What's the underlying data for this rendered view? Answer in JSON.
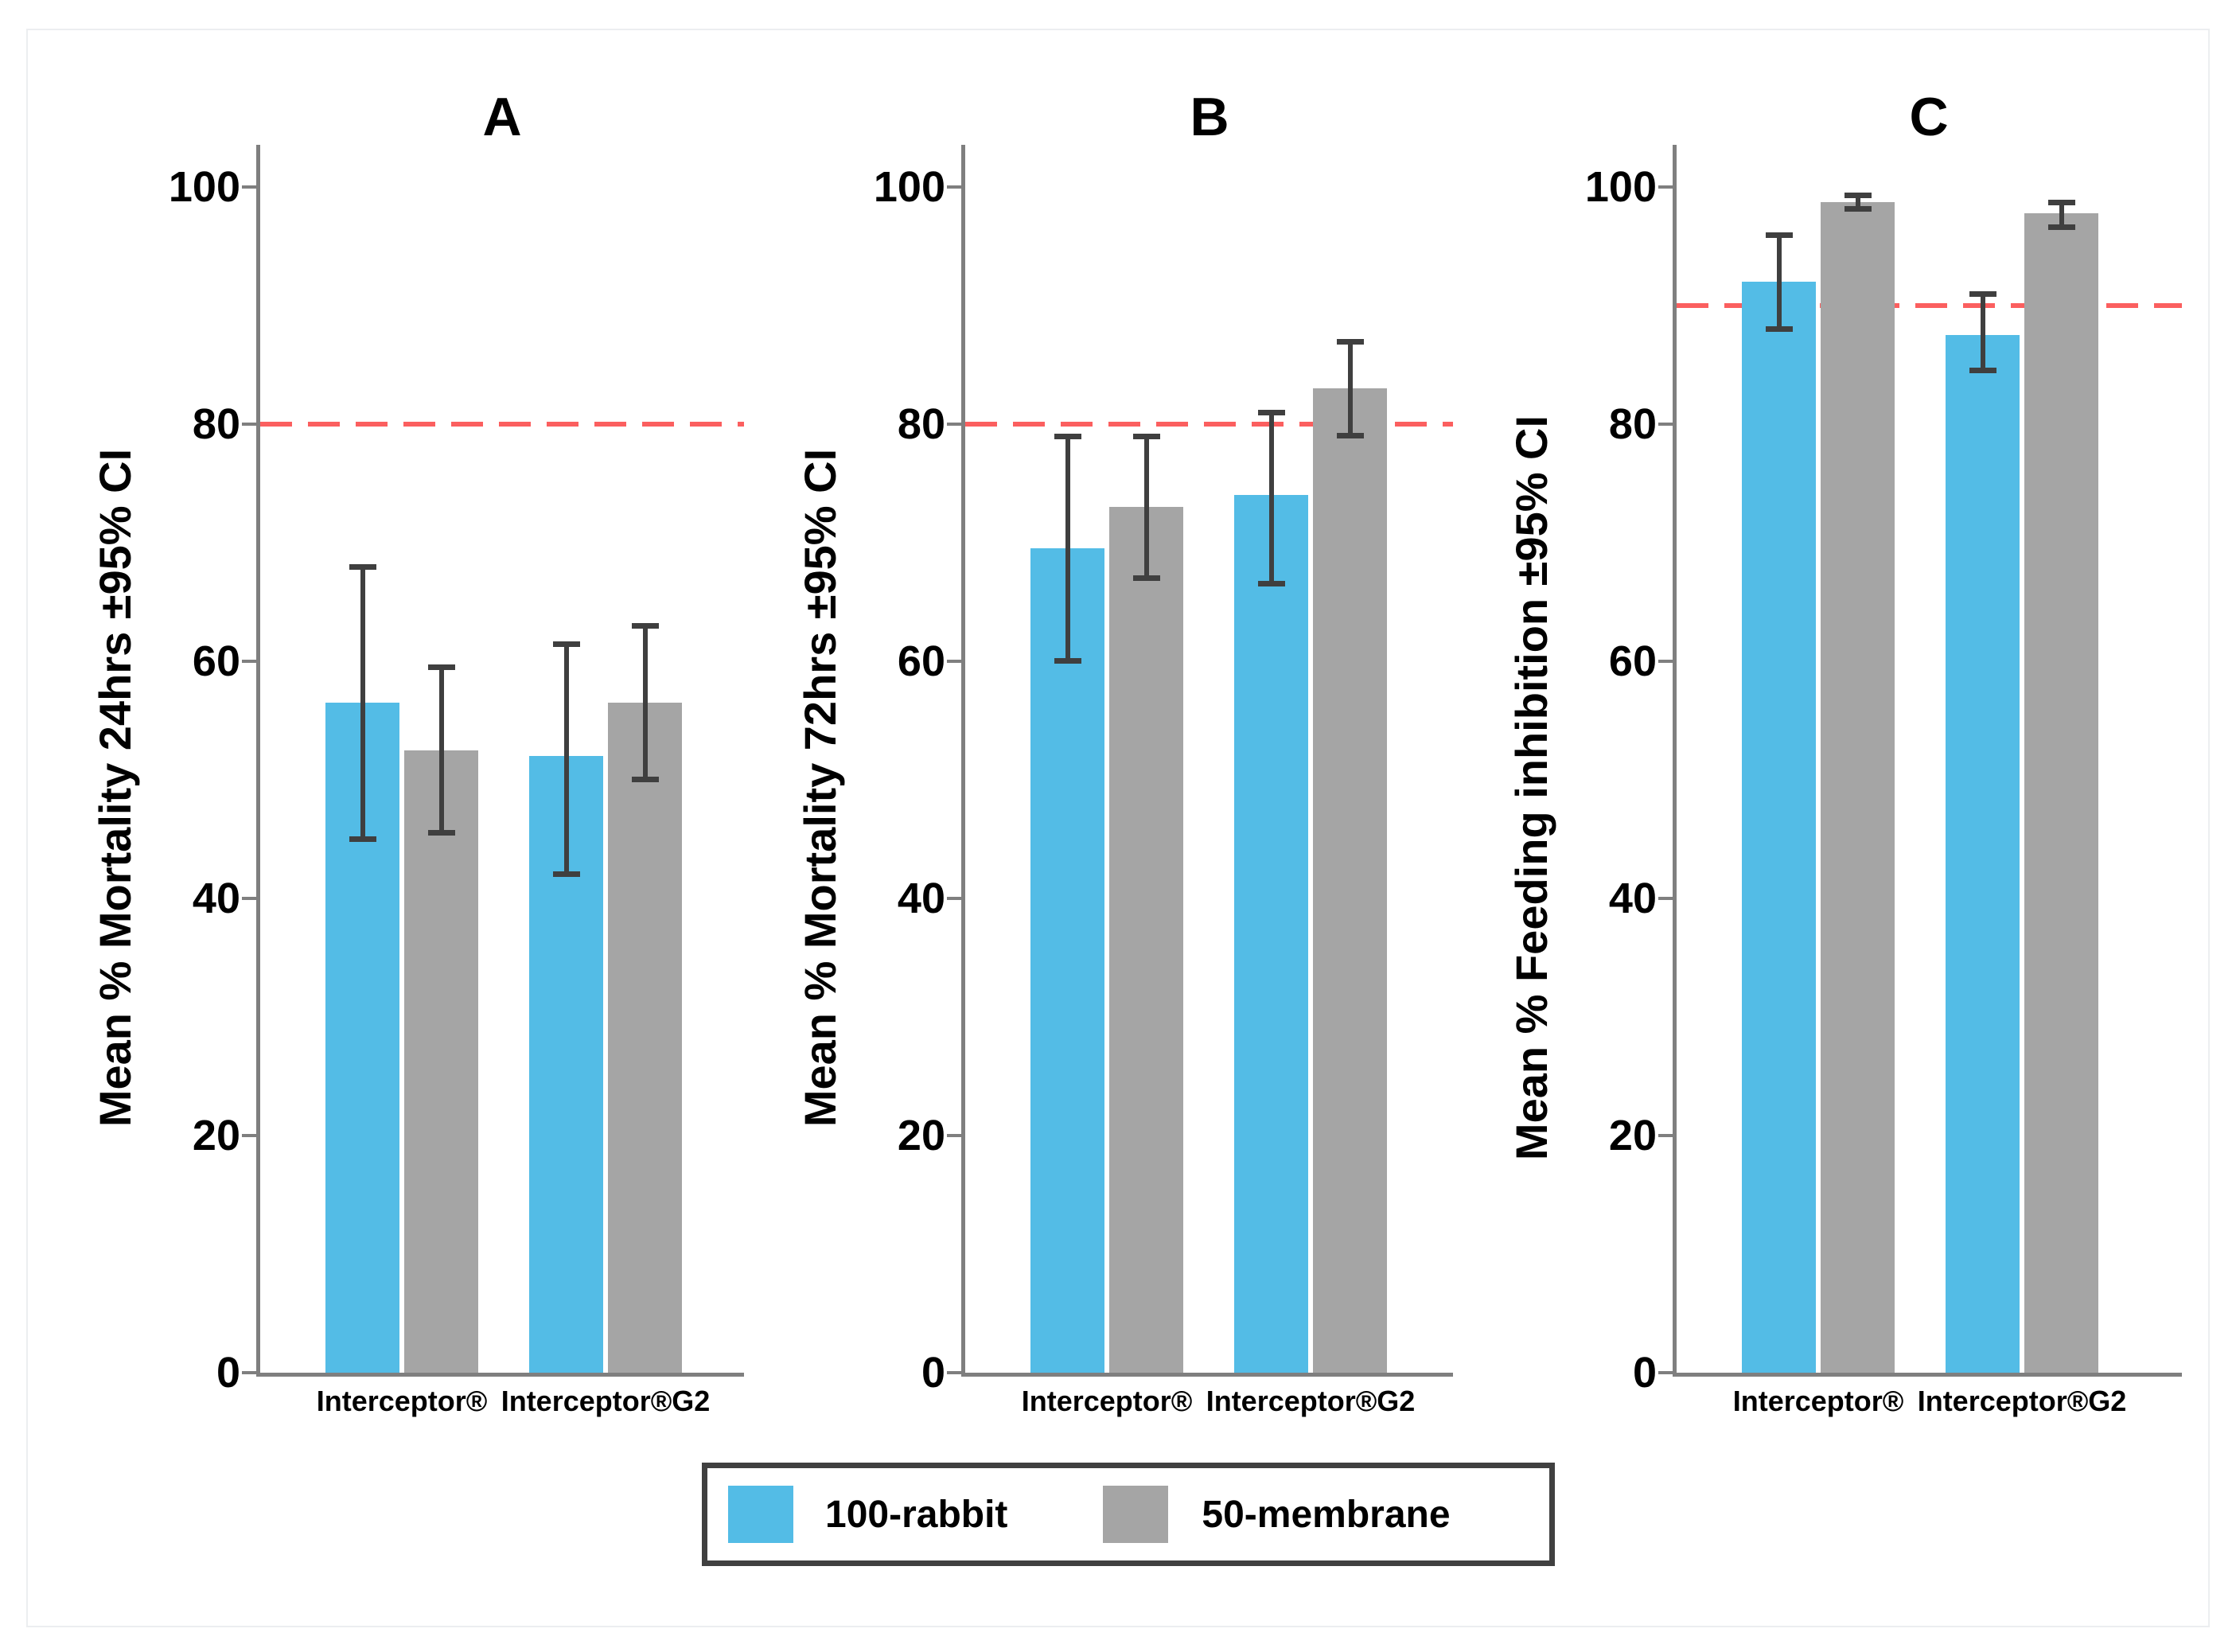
{
  "figure": {
    "background": "#FFFFFF",
    "border_color": "#ECEEF0",
    "text_color": "#000000"
  },
  "legend": {
    "position": "bottom-center",
    "border_color": "#404040",
    "entries": [
      {
        "label": "100-rabbit",
        "color": "#53BCE6"
      },
      {
        "label": "50-membrane",
        "color": "#A5A5A5"
      }
    ]
  },
  "chart_data": [
    {
      "type": "bar",
      "title": "A",
      "ylabel": "Mean % Mortality 24hrs ±95% CI",
      "xlabel": "",
      "categories": [
        "Interceptor®",
        "Interceptor®G2"
      ],
      "series": [
        {
          "name": "100-rabbit",
          "color": "#53BCE6",
          "values": [
            56.5,
            52
          ],
          "ci_low": [
            45,
            42
          ],
          "ci_high": [
            68,
            61.5
          ]
        },
        {
          "name": "50-membrane",
          "color": "#A5A5A5",
          "values": [
            52.5,
            56.5
          ],
          "ci_low": [
            45.5,
            50
          ],
          "ci_high": [
            59.5,
            63
          ]
        }
      ],
      "ref_line": {
        "value": 80,
        "color": "#FB5F5F",
        "style": "dashed"
      },
      "ylim": [
        0,
        100
      ],
      "yticks": [
        0,
        20,
        40,
        60,
        80,
        100
      ],
      "grid": false,
      "legend_position": "bottom",
      "axis_color": "#7F7F7F",
      "error_bar_color": "#3F3F3F"
    },
    {
      "type": "bar",
      "title": "B",
      "ylabel": "Mean % Mortality 72hrs ±95% CI",
      "xlabel": "",
      "categories": [
        "Interceptor®",
        "Interceptor®G2"
      ],
      "series": [
        {
          "name": "100-rabbit",
          "color": "#53BCE6",
          "values": [
            69.5,
            74
          ],
          "ci_low": [
            60,
            66.5
          ],
          "ci_high": [
            79,
            81
          ]
        },
        {
          "name": "50-membrane",
          "color": "#A5A5A5",
          "values": [
            73,
            83
          ],
          "ci_low": [
            67,
            79
          ],
          "ci_high": [
            79,
            87
          ]
        }
      ],
      "ref_line": {
        "value": 80,
        "color": "#FB5F5F",
        "style": "dashed"
      },
      "ylim": [
        0,
        100
      ],
      "yticks": [
        0,
        20,
        40,
        60,
        80,
        100
      ],
      "grid": false,
      "legend_position": "bottom",
      "axis_color": "#7F7F7F",
      "error_bar_color": "#3F3F3F"
    },
    {
      "type": "bar",
      "title": "C",
      "ylabel": "Mean % Feeding inhibition ±95% CI",
      "xlabel": "",
      "categories": [
        "Interceptor®",
        "Interceptor®G2"
      ],
      "series": [
        {
          "name": "100-rabbit",
          "color": "#53BCE6",
          "values": [
            92,
            87.5
          ],
          "ci_low": [
            88,
            84.5
          ],
          "ci_high": [
            96,
            91
          ]
        },
        {
          "name": "50-membrane",
          "color": "#A5A5A5",
          "values": [
            98.7,
            97.8
          ],
          "ci_low": [
            98.1,
            96.6
          ],
          "ci_high": [
            99.3,
            98.7
          ]
        }
      ],
      "ref_line": {
        "value": 90,
        "color": "#FB5F5F",
        "style": "dashed"
      },
      "ylim": [
        0,
        100
      ],
      "yticks": [
        0,
        20,
        40,
        60,
        80,
        100
      ],
      "grid": false,
      "legend_position": "bottom",
      "axis_color": "#7F7F7F",
      "error_bar_color": "#3F3F3F"
    }
  ]
}
